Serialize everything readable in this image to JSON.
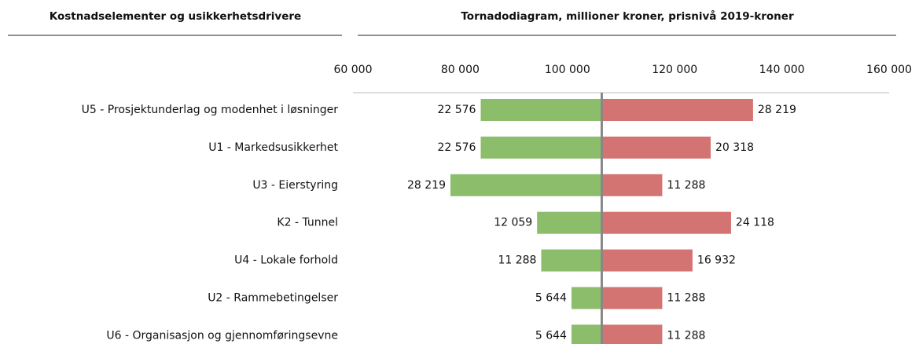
{
  "chart_data": {
    "type": "tornado",
    "header_left": "Kostnadselementer og usikkerhetsdrivere",
    "title": "Tornadodiagram, millioner kroner, prisnivå 2019-kroner",
    "categories": [
      "U5 - Prosjektunderlag og modenhet i løsninger",
      "U1 - Markedsusikkerhet",
      "U3 - Eierstyring",
      "K2 - Tunnel",
      "U4 - Lokale forhold",
      "U2 - Rammebetingelser",
      "U6 - Organisasjon og gjennomføringsevne"
    ],
    "base": 106400,
    "series": [
      {
        "color": "#8cbd6b",
        "values": [
          22576,
          22576,
          28219,
          12059,
          11288,
          5644,
          5644
        ],
        "value_labels": [
          "22 576",
          "22 576",
          "28 219",
          "12 059",
          "11 288",
          "5 644",
          "5 644"
        ]
      },
      {
        "color": "#d47472",
        "values": [
          28219,
          20318,
          11288,
          24118,
          16932,
          11288,
          11288
        ],
        "value_labels": [
          "28 219",
          "20 318",
          "11 288",
          "24 118",
          "16 932",
          "11 288",
          "11 288"
        ]
      }
    ],
    "xlim": [
      60000,
      160000
    ],
    "xticks": [
      {
        "value": 60000,
        "label": "60 000"
      },
      {
        "value": 80000,
        "label": "80 000"
      },
      {
        "value": 100000,
        "label": "100 000"
      },
      {
        "value": 120000,
        "label": "120 000"
      },
      {
        "value": 140000,
        "label": "140 000"
      },
      {
        "value": 160000,
        "label": "160 000"
      }
    ]
  }
}
